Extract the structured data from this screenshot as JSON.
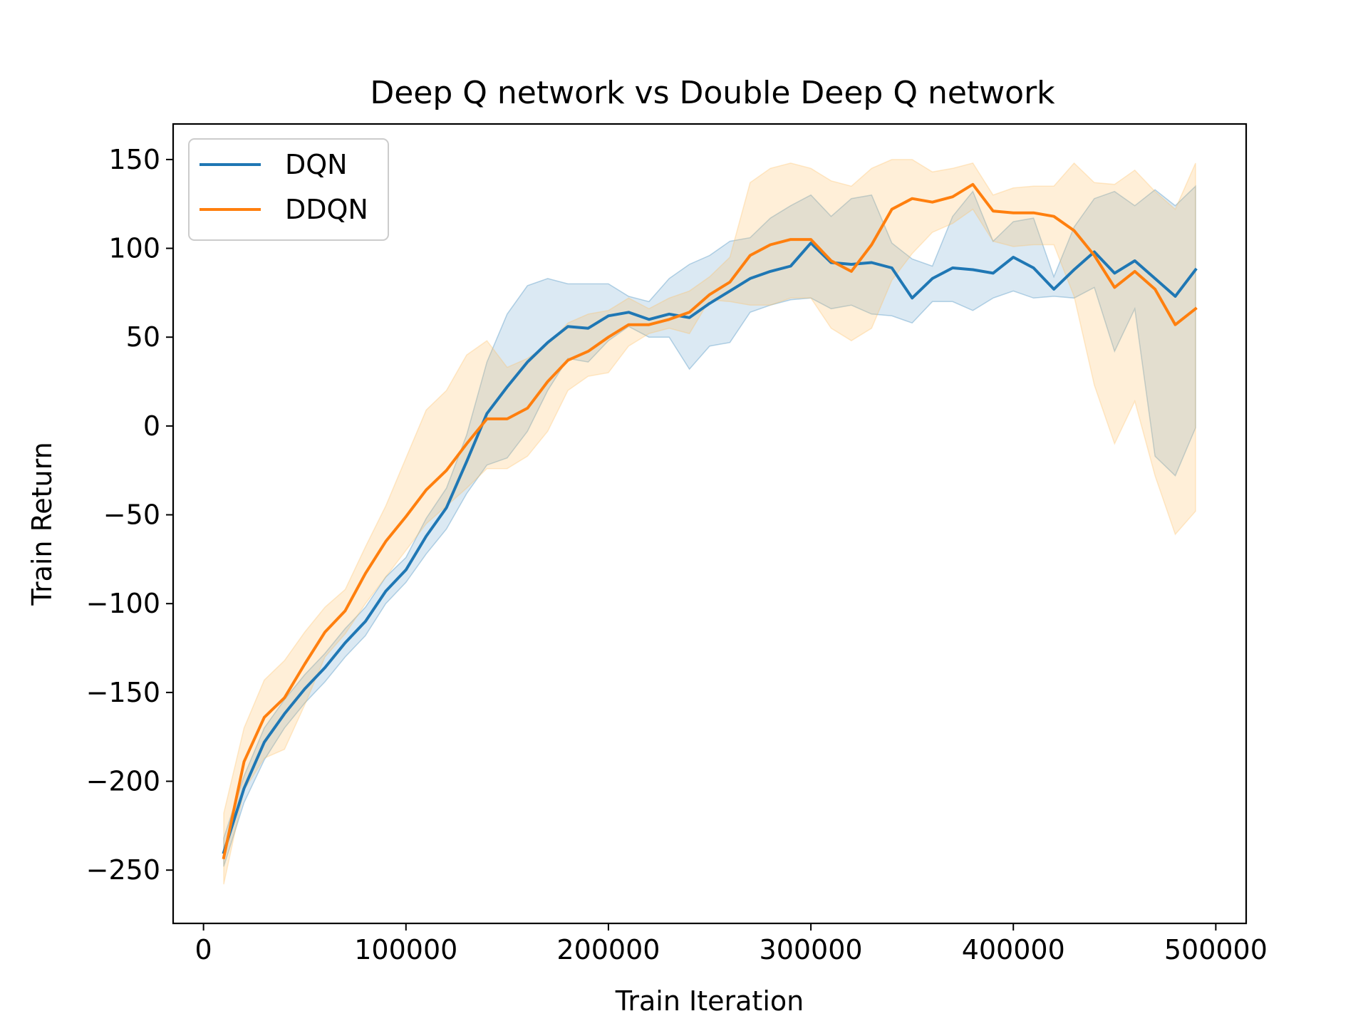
{
  "chart_data": {
    "type": "line",
    "title": "Deep Q network vs Double Deep Q network",
    "xlabel": "Train Iteration",
    "ylabel": "Train Return",
    "xlim": [
      -15000,
      515000
    ],
    "ylim": [
      -280,
      170
    ],
    "xticks": [
      0,
      100000,
      200000,
      300000,
      400000,
      500000
    ],
    "xtick_labels": [
      "0",
      "100000",
      "200000",
      "300000",
      "400000",
      "500000"
    ],
    "yticks": [
      -250,
      -200,
      -150,
      -100,
      -50,
      0,
      50,
      100,
      150
    ],
    "ytick_labels": [
      "−250",
      "−200",
      "−150",
      "−100",
      "−50",
      "0",
      "50",
      "100",
      "150"
    ],
    "grid": false,
    "legend": "top-left",
    "x": [
      10000,
      20000,
      30000,
      40000,
      50000,
      60000,
      70000,
      80000,
      90000,
      100000,
      110000,
      120000,
      130000,
      140000,
      150000,
      160000,
      170000,
      180000,
      190000,
      200000,
      210000,
      220000,
      230000,
      240000,
      250000,
      260000,
      270000,
      280000,
      290000,
      300000,
      310000,
      320000,
      330000,
      340000,
      350000,
      360000,
      370000,
      380000,
      390000,
      400000,
      410000,
      420000,
      430000,
      440000,
      450000,
      460000,
      470000,
      480000,
      490000
    ],
    "series": [
      {
        "name": "DQN",
        "color": "#1f77b4",
        "band_color": "#1f77b4",
        "values": [
          -240,
          -204,
          -178,
          -162,
          -148,
          -136,
          -122,
          -110,
          -93,
          -81,
          -62,
          -46,
          -20,
          7,
          22,
          36,
          47,
          56,
          55,
          62,
          64,
          60,
          63,
          61,
          69,
          76,
          83,
          87,
          90,
          103,
          92,
          91,
          92,
          89,
          72,
          83,
          89,
          88,
          86,
          95,
          89,
          77,
          88,
          98,
          86,
          93,
          83,
          73,
          88
        ],
        "lower": [
          -248,
          -212,
          -188,
          -170,
          -156,
          -144,
          -130,
          -118,
          -100,
          -88,
          -72,
          -58,
          -38,
          -22,
          -18,
          -3,
          20,
          38,
          36,
          48,
          56,
          50,
          50,
          32,
          45,
          47,
          64,
          68,
          71,
          72,
          66,
          68,
          63,
          62,
          58,
          70,
          70,
          65,
          72,
          76,
          72,
          73,
          72,
          78,
          42,
          66,
          -17,
          -28,
          -1
        ],
        "upper": [
          -232,
          -197,
          -170,
          -154,
          -140,
          -128,
          -114,
          -102,
          -85,
          -74,
          -52,
          -35,
          -5,
          36,
          63,
          79,
          83,
          80,
          80,
          80,
          73,
          70,
          83,
          91,
          96,
          104,
          106,
          117,
          124,
          130,
          118,
          128,
          130,
          103,
          94,
          90,
          118,
          132,
          104,
          115,
          117,
          84,
          112,
          128,
          132,
          124,
          133,
          124,
          135
        ]
      },
      {
        "name": "DDQN",
        "color": "#ff7f0e",
        "band_color": "#ffbe5c",
        "values": [
          -243,
          -189,
          -164,
          -153,
          -134,
          -116,
          -104,
          -83,
          -65,
          -51,
          -36,
          -25,
          -10,
          4,
          4,
          10,
          25,
          37,
          42,
          50,
          57,
          57,
          60,
          64,
          74,
          81,
          96,
          102,
          105,
          105,
          93,
          87,
          102,
          122,
          128,
          126,
          129,
          136,
          121,
          120,
          120,
          118,
          110,
          96,
          78,
          87,
          77,
          57,
          66
        ],
        "lower": [
          -258,
          -205,
          -187,
          -182,
          -157,
          -130,
          -117,
          -100,
          -85,
          -70,
          -55,
          -45,
          -35,
          -24,
          -24,
          -17,
          -3,
          20,
          28,
          30,
          45,
          52,
          55,
          52,
          71,
          70,
          68,
          68,
          72,
          72,
          55,
          48,
          55,
          82,
          97,
          109,
          114,
          122,
          104,
          101,
          102,
          102,
          73,
          23,
          -10,
          14,
          -28,
          -61,
          -48
        ],
        "upper": [
          -218,
          -170,
          -143,
          -132,
          -116,
          -102,
          -92,
          -68,
          -45,
          -18,
          9,
          20,
          40,
          48,
          33,
          38,
          46,
          58,
          63,
          65,
          72,
          66,
          72,
          76,
          84,
          95,
          137,
          145,
          148,
          145,
          138,
          135,
          145,
          150,
          150,
          143,
          145,
          148,
          130,
          134,
          135,
          135,
          148,
          137,
          136,
          144,
          132,
          122,
          148
        ]
      }
    ]
  }
}
